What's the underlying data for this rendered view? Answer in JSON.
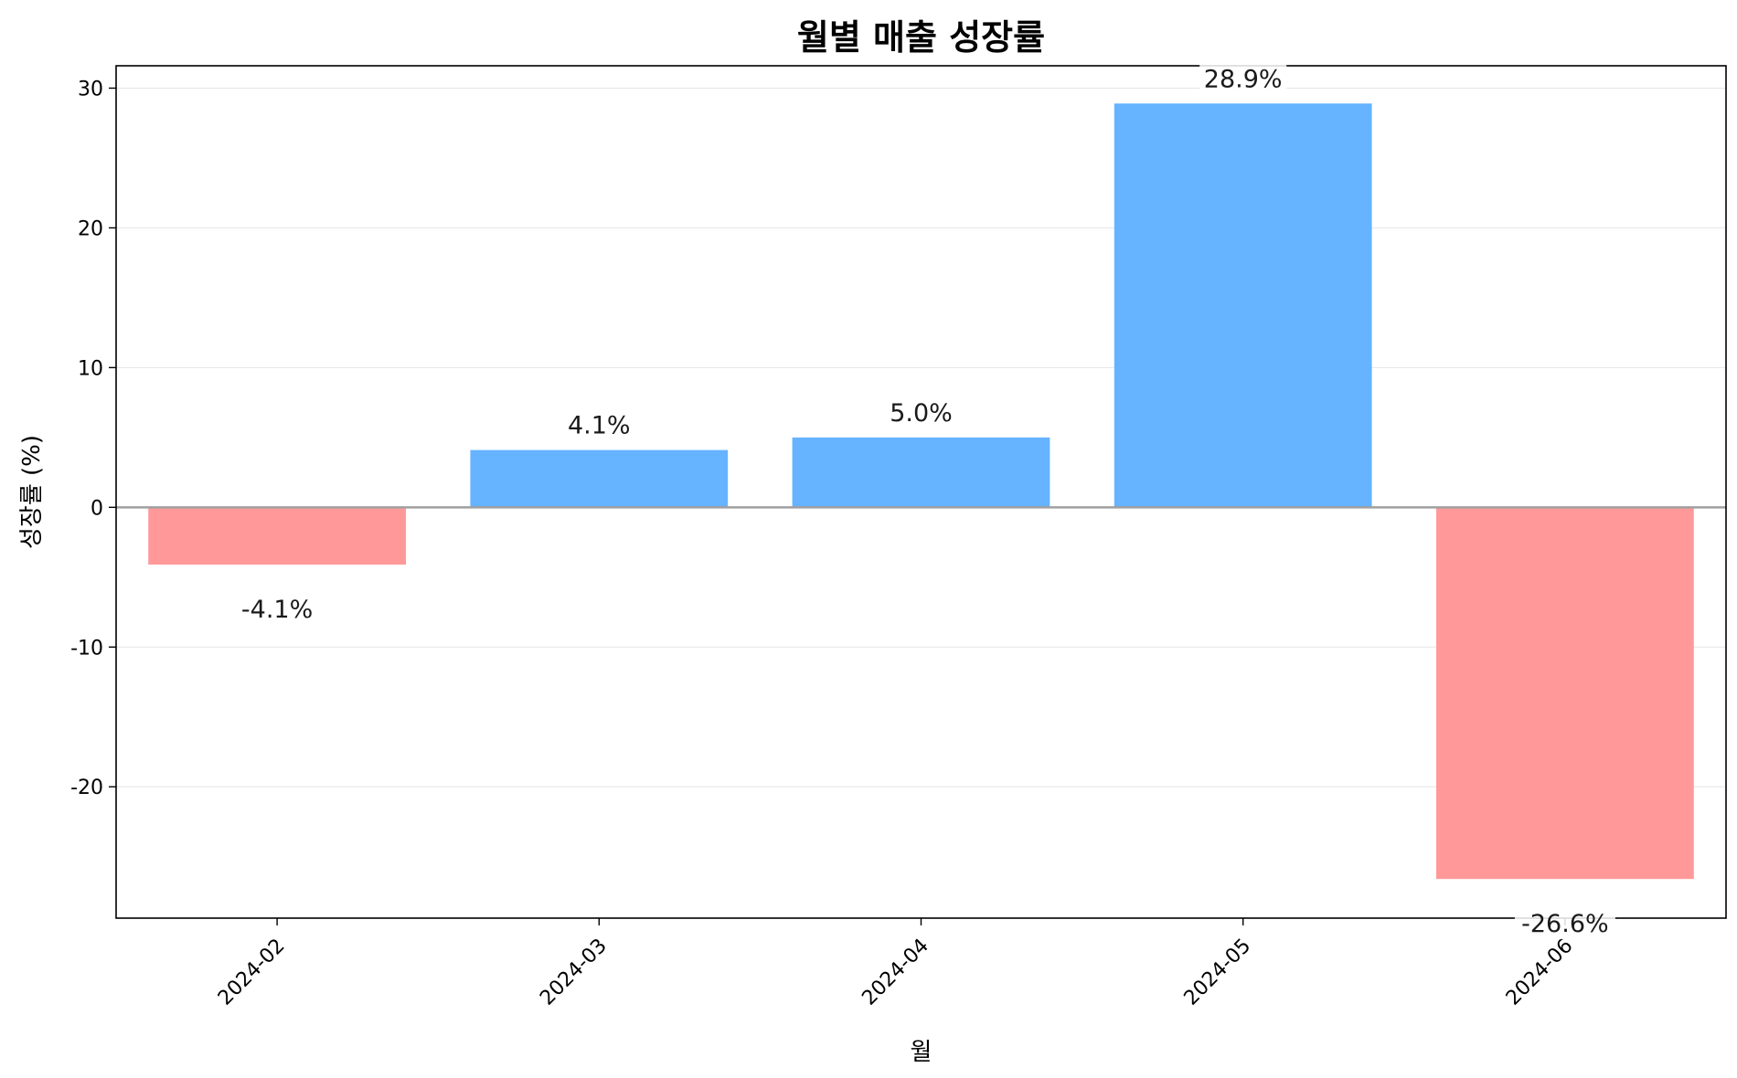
{
  "chart_data": {
    "type": "bar",
    "title": "월별 매출 성장률",
    "xlabel": "월",
    "ylabel": "성장률 (%)",
    "categories": [
      "2024-02",
      "2024-03",
      "2024-04",
      "2024-05",
      "2024-06"
    ],
    "values": [
      -4.1,
      4.1,
      5.0,
      28.9,
      -26.6
    ],
    "value_labels": [
      "-4.1%",
      "4.1%",
      "5.0%",
      "28.9%",
      "-26.6%"
    ],
    "ylim": [
      -29.4,
      31.6
    ],
    "yticks": [
      -20,
      -10,
      0,
      10,
      20,
      30
    ],
    "ytick_labels": [
      "-20",
      "-10",
      "0",
      "10",
      "20",
      "30"
    ],
    "grid": "horizontal",
    "colors": {
      "positive": "#66b3ff",
      "negative": "#ff9999",
      "zero_line": "#a0a0a0"
    }
  }
}
